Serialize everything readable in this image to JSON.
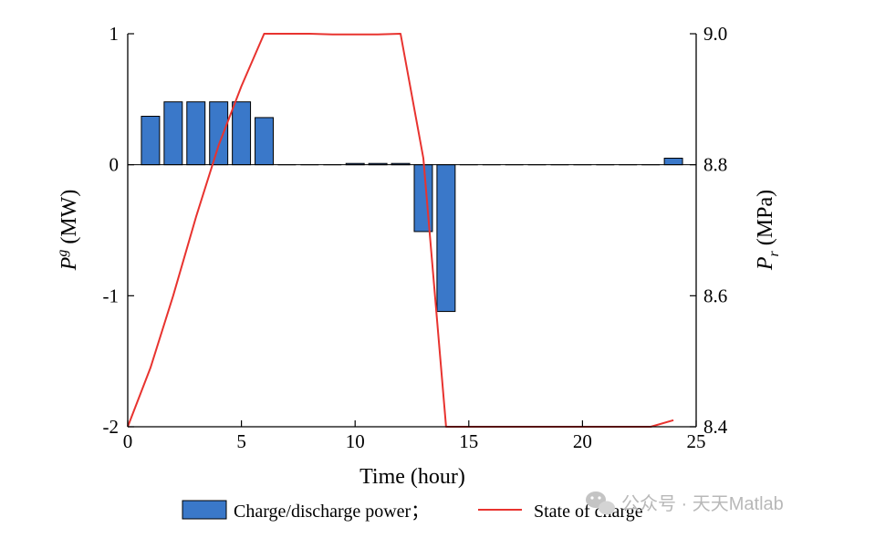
{
  "chart_data": {
    "type": "bar",
    "xlabel": "Time (hour)",
    "ylabel_left": {
      "symbol": "P",
      "superscript": "g",
      "unit": "(MW)"
    },
    "ylabel_right": {
      "symbol": "P",
      "subscript": "r",
      "unit": "(MPa)"
    },
    "xlim": [
      0,
      25
    ],
    "ylim_left": [
      -2,
      1
    ],
    "ylim_right": [
      8.4,
      9.0
    ],
    "x_ticks": [
      0,
      5,
      10,
      15,
      20,
      25
    ],
    "x_tick_labels": [
      "0",
      "5",
      "10",
      "15",
      "20",
      "25"
    ],
    "y_left_ticks": [
      1,
      0,
      -1,
      -2
    ],
    "y_left_tick_labels": [
      "1",
      "0",
      "-1",
      "-2"
    ],
    "y_right_ticks": [
      9.0,
      8.8,
      8.6,
      8.4
    ],
    "y_right_tick_labels": [
      "9.0",
      "8.8",
      "8.6",
      "8.4"
    ],
    "grid": false,
    "legend_position": "bottom",
    "series": [
      {
        "name": "Charge/discharge power",
        "legend_label": "Charge/discharge power；",
        "kind": "bar",
        "axis": "left",
        "color": "#3a78c9",
        "x": [
          1,
          2,
          3,
          4,
          5,
          6,
          7,
          8,
          9,
          10,
          11,
          12,
          13,
          14,
          15,
          16,
          17,
          18,
          19,
          20,
          21,
          22,
          23,
          24
        ],
        "values": [
          0.37,
          0.48,
          0.48,
          0.48,
          0.48,
          0.36,
          0,
          0,
          0,
          0.01,
          0.01,
          0.01,
          -0.51,
          -1.12,
          0,
          0,
          0,
          0,
          0,
          0,
          0,
          0,
          0,
          0.05
        ]
      },
      {
        "name": "State of charge",
        "legend_label": "State of charge",
        "kind": "line",
        "axis": "right",
        "color": "#e8332f",
        "x": [
          0,
          1,
          2,
          3,
          4,
          5,
          6,
          7,
          8,
          9,
          10,
          11,
          12,
          13,
          14,
          15,
          16,
          17,
          18,
          19,
          20,
          21,
          22,
          23,
          24
        ],
        "values": [
          8.4,
          8.49,
          8.6,
          8.72,
          8.83,
          8.92,
          9.0,
          9.0,
          9.0,
          8.999,
          8.999,
          8.999,
          9.0,
          8.81,
          8.4,
          8.4,
          8.4,
          8.4,
          8.4,
          8.4,
          8.4,
          8.4,
          8.4,
          8.4,
          8.41
        ]
      }
    ]
  },
  "watermark": "公众号 · 天天Matlab"
}
